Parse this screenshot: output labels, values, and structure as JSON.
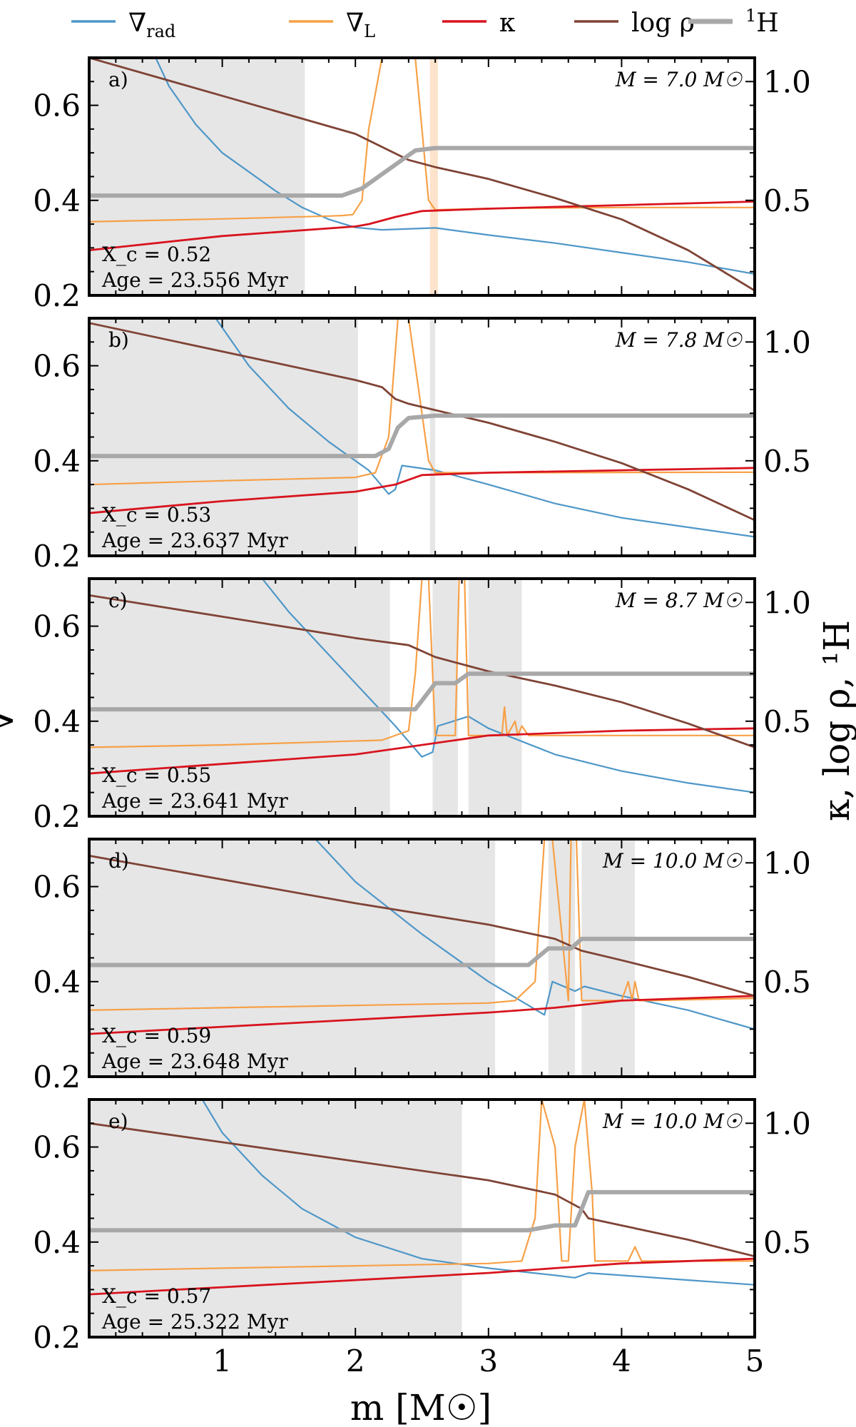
{
  "legend": [
    {
      "key": "grad_rad",
      "base": "∇",
      "sub": "rad",
      "color": "#4e97c8"
    },
    {
      "key": "grad_L",
      "base": "∇",
      "sub": "L",
      "color": "#f7a047"
    },
    {
      "key": "kappa",
      "base": "κ",
      "sub": "",
      "color": "#d8141e"
    },
    {
      "key": "logrho",
      "base": "log ρ",
      "sub": "",
      "color": "#7f4335"
    },
    {
      "key": "h1",
      "base": "H",
      "sup": "1",
      "color": "#a8a8a8"
    }
  ],
  "xlabel": "m [M☉]",
  "ylabel_left": "∇",
  "ylabel_right": "κ, log ρ, ¹H",
  "chart_data": [
    {
      "type": "line",
      "panel": "a)",
      "mass_label": "M = 7.0 M☉",
      "xc_label": "X_c = 0.52",
      "age_label": "Age = 23.556  Myr",
      "xlim": [
        0,
        5
      ],
      "ylim_left": [
        0.2,
        0.7
      ],
      "ylim_right": [
        0.1,
        1.1
      ],
      "xticks": [
        1,
        2,
        3,
        4,
        5
      ],
      "yticks_left": [
        0.2,
        0.4,
        0.6
      ],
      "yticks_right": [
        0.5,
        1.0
      ],
      "shaded": [
        {
          "x0": 0,
          "x1": 1.62,
          "color": "#e6e6e6"
        },
        {
          "x0": 2.56,
          "x1": 2.62,
          "color": "#fde3cc"
        }
      ],
      "series": {
        "grad_rad": {
          "x": [
            0.5,
            0.6,
            0.8,
            1.0,
            1.2,
            1.4,
            1.6,
            1.8,
            2.0,
            2.2,
            2.6,
            3.0,
            3.5,
            4.0,
            4.5,
            5.0
          ],
          "y": [
            0.7,
            0.64,
            0.56,
            0.5,
            0.46,
            0.42,
            0.385,
            0.36,
            0.343,
            0.338,
            0.342,
            0.327,
            0.31,
            0.29,
            0.27,
            0.245
          ]
        },
        "grad_L": {
          "x": [
            0,
            1.0,
            1.8,
            1.9,
            1.98,
            2.05,
            2.1,
            2.2,
            2.45,
            2.5,
            2.55,
            2.6,
            3.0,
            4.0,
            5.0
          ],
          "y": [
            0.355,
            0.361,
            0.367,
            0.368,
            0.37,
            0.4,
            0.55,
            0.7,
            0.7,
            0.55,
            0.4,
            0.38,
            0.383,
            0.385,
            0.385
          ]
        },
        "kappa": {
          "x": [
            0,
            1.0,
            2.0,
            2.1,
            2.3,
            2.5,
            3.0,
            4.0,
            5.0
          ],
          "y": [
            0.29,
            0.35,
            0.39,
            0.4,
            0.43,
            0.455,
            0.465,
            0.48,
            0.495
          ]
        },
        "logrho": {
          "x": [
            0,
            1.0,
            2.0,
            2.4,
            2.6,
            3.0,
            3.5,
            4.0,
            4.5,
            5.0
          ],
          "y": [
            1.1,
            0.94,
            0.78,
            0.67,
            0.64,
            0.59,
            0.51,
            0.42,
            0.29,
            0.12
          ]
        },
        "h1": {
          "x": [
            0,
            1.9,
            2.05,
            2.3,
            2.45,
            2.6,
            5.0
          ],
          "y": [
            0.52,
            0.52,
            0.55,
            0.65,
            0.71,
            0.72,
            0.72
          ]
        }
      }
    },
    {
      "type": "line",
      "panel": "b)",
      "mass_label": "M = 7.8 M☉",
      "xc_label": "X_c = 0.53",
      "age_label": "Age = 23.637  Myr",
      "xlim": [
        0,
        5
      ],
      "ylim_left": [
        0.2,
        0.7
      ],
      "ylim_right": [
        0.1,
        1.1
      ],
      "xticks": [
        1,
        2,
        3,
        4,
        5
      ],
      "yticks_left": [
        0.2,
        0.4,
        0.6
      ],
      "yticks_right": [
        0.5,
        1.0
      ],
      "shaded": [
        {
          "x0": 0,
          "x1": 2.02,
          "color": "#e6e6e6"
        },
        {
          "x0": 2.56,
          "x1": 2.6,
          "color": "#e6e6e6"
        }
      ],
      "series": {
        "grad_rad": {
          "x": [
            0.95,
            1.2,
            1.5,
            1.8,
            2.1,
            2.25,
            2.3,
            2.35,
            2.6,
            3.0,
            3.5,
            4.0,
            4.5,
            5.0
          ],
          "y": [
            0.7,
            0.6,
            0.51,
            0.44,
            0.38,
            0.33,
            0.34,
            0.39,
            0.38,
            0.35,
            0.31,
            0.28,
            0.26,
            0.24
          ]
        },
        "grad_L": {
          "x": [
            0,
            1.0,
            2.0,
            2.15,
            2.25,
            2.32,
            2.4,
            2.5,
            2.55,
            2.6,
            3.0,
            5.0
          ],
          "y": [
            0.35,
            0.358,
            0.365,
            0.375,
            0.45,
            0.7,
            0.7,
            0.5,
            0.4,
            0.375,
            0.375,
            0.376
          ]
        },
        "kappa": {
          "x": [
            0,
            1.0,
            2.0,
            2.3,
            2.5,
            3.0,
            4.0,
            5.0
          ],
          "y": [
            0.28,
            0.33,
            0.37,
            0.4,
            0.44,
            0.45,
            0.46,
            0.47
          ]
        },
        "logrho": {
          "x": [
            0,
            1.0,
            2.0,
            2.2,
            2.3,
            2.4,
            3.0,
            3.5,
            4.0,
            4.5,
            5.0
          ],
          "y": [
            1.08,
            0.96,
            0.84,
            0.81,
            0.76,
            0.74,
            0.66,
            0.58,
            0.49,
            0.38,
            0.25
          ]
        },
        "h1": {
          "x": [
            0,
            2.15,
            2.25,
            2.32,
            2.4,
            2.6,
            5.0
          ],
          "y": [
            0.52,
            0.52,
            0.55,
            0.64,
            0.68,
            0.69,
            0.69
          ]
        }
      }
    },
    {
      "type": "line",
      "panel": "c)",
      "mass_label": "M = 8.7 M☉",
      "xc_label": "X_c = 0.55",
      "age_label": "Age = 23.641  Myr",
      "xlim": [
        0,
        5
      ],
      "ylim_left": [
        0.2,
        0.7
      ],
      "ylim_right": [
        0.1,
        1.1
      ],
      "xticks": [
        1,
        2,
        3,
        4,
        5
      ],
      "yticks_left": [
        0.2,
        0.4,
        0.6
      ],
      "yticks_right": [
        0.5,
        1.0
      ],
      "shaded": [
        {
          "x0": 0,
          "x1": 2.26,
          "color": "#e6e6e6"
        },
        {
          "x0": 2.58,
          "x1": 2.77,
          "color": "#e6e6e6"
        },
        {
          "x0": 2.85,
          "x1": 3.25,
          "color": "#e6e6e6"
        }
      ],
      "series": {
        "grad_rad": {
          "x": [
            1.3,
            1.5,
            1.8,
            2.1,
            2.3,
            2.5,
            2.58,
            2.62,
            2.85,
            3.0,
            3.5,
            4.0,
            4.5,
            5.0
          ],
          "y": [
            0.7,
            0.63,
            0.54,
            0.45,
            0.39,
            0.325,
            0.335,
            0.39,
            0.41,
            0.385,
            0.33,
            0.295,
            0.27,
            0.25
          ]
        },
        "grad_L": {
          "x": [
            0,
            1.0,
            2.2,
            2.4,
            2.45,
            2.5,
            2.55,
            2.6,
            2.75,
            2.78,
            2.82,
            2.85,
            3.0,
            3.1,
            3.12,
            3.14,
            3.2,
            3.22,
            3.25,
            3.3,
            4.0,
            5.0
          ],
          "y": [
            0.345,
            0.35,
            0.36,
            0.38,
            0.5,
            0.7,
            0.7,
            0.37,
            0.37,
            0.7,
            0.7,
            0.37,
            0.37,
            0.37,
            0.43,
            0.37,
            0.4,
            0.37,
            0.39,
            0.37,
            0.37,
            0.37
          ]
        },
        "kappa": {
          "x": [
            0,
            1.0,
            2.0,
            2.5,
            3.0,
            4.0,
            5.0
          ],
          "y": [
            0.28,
            0.32,
            0.36,
            0.4,
            0.44,
            0.46,
            0.47
          ]
        },
        "logrho": {
          "x": [
            0,
            1.0,
            2.0,
            2.4,
            2.6,
            3.0,
            3.5,
            4.0,
            4.5,
            5.0
          ],
          "y": [
            1.03,
            0.94,
            0.85,
            0.82,
            0.77,
            0.71,
            0.65,
            0.58,
            0.49,
            0.39
          ]
        },
        "h1": {
          "x": [
            0,
            2.45,
            2.6,
            2.75,
            2.85,
            5.0
          ],
          "y": [
            0.55,
            0.55,
            0.66,
            0.66,
            0.7,
            0.7
          ]
        }
      }
    },
    {
      "type": "line",
      "panel": "d)",
      "mass_label": "M = 10.0 M☉",
      "xc_label": "X_c = 0.59",
      "age_label": "Age = 23.648  Myr",
      "xlim": [
        0,
        5
      ],
      "ylim_left": [
        0.2,
        0.7
      ],
      "ylim_right": [
        0.1,
        1.1
      ],
      "xticks": [
        1,
        2,
        3,
        4,
        5
      ],
      "yticks_left": [
        0.2,
        0.4,
        0.6
      ],
      "yticks_right": [
        0.5,
        1.0
      ],
      "shaded": [
        {
          "x0": 0,
          "x1": 3.05,
          "color": "#e6e6e6"
        },
        {
          "x0": 3.45,
          "x1": 3.65,
          "color": "#e6e6e6"
        },
        {
          "x0": 3.7,
          "x1": 4.1,
          "color": "#e6e6e6"
        }
      ],
      "series": {
        "grad_rad": {
          "x": [
            1.7,
            2.0,
            2.5,
            3.0,
            3.3,
            3.42,
            3.48,
            3.65,
            3.72,
            4.0,
            4.5,
            5.0
          ],
          "y": [
            0.7,
            0.61,
            0.5,
            0.4,
            0.35,
            0.33,
            0.4,
            0.38,
            0.39,
            0.37,
            0.34,
            0.3
          ]
        },
        "grad_L": {
          "x": [
            0,
            1.0,
            2.0,
            3.0,
            3.2,
            3.35,
            3.42,
            3.48,
            3.6,
            3.62,
            3.66,
            3.7,
            4.0,
            4.05,
            4.08,
            4.1,
            4.13,
            4.2,
            5.0
          ],
          "y": [
            0.34,
            0.345,
            0.35,
            0.355,
            0.36,
            0.4,
            0.7,
            0.7,
            0.36,
            0.7,
            0.7,
            0.36,
            0.36,
            0.4,
            0.36,
            0.4,
            0.36,
            0.36,
            0.365
          ]
        },
        "kappa": {
          "x": [
            0,
            1.0,
            2.0,
            3.0,
            3.5,
            4.0,
            5.0
          ],
          "y": [
            0.28,
            0.31,
            0.34,
            0.37,
            0.39,
            0.42,
            0.44
          ]
        },
        "logrho": {
          "x": [
            0,
            1.0,
            2.0,
            3.0,
            3.5,
            3.7,
            4.0,
            4.5,
            5.0
          ],
          "y": [
            1.03,
            0.93,
            0.83,
            0.74,
            0.68,
            0.63,
            0.59,
            0.52,
            0.44
          ]
        },
        "h1": {
          "x": [
            0,
            3.3,
            3.45,
            3.62,
            3.7,
            5.0
          ],
          "y": [
            0.57,
            0.57,
            0.64,
            0.64,
            0.68,
            0.68
          ]
        }
      }
    },
    {
      "type": "line",
      "panel": "e)",
      "mass_label": "M = 10.0 M☉",
      "xc_label": "X_c = 0.57",
      "age_label": "Age = 25.322  Myr",
      "xlim": [
        0,
        5
      ],
      "ylim_left": [
        0.2,
        0.7
      ],
      "ylim_right": [
        0.1,
        1.1
      ],
      "xticks": [
        1,
        2,
        3,
        4,
        5
      ],
      "yticks_left": [
        0.2,
        0.4,
        0.6
      ],
      "yticks_right": [
        0.5,
        1.0
      ],
      "shaded": [
        {
          "x0": 0,
          "x1": 2.8,
          "color": "#e6e6e6"
        }
      ],
      "series": {
        "grad_rad": {
          "x": [
            0.85,
            1.0,
            1.3,
            1.6,
            2.0,
            2.5,
            3.0,
            3.5,
            3.65,
            3.75,
            4.0,
            4.5,
            5.0
          ],
          "y": [
            0.7,
            0.63,
            0.54,
            0.47,
            0.41,
            0.365,
            0.345,
            0.33,
            0.325,
            0.335,
            0.33,
            0.32,
            0.31
          ]
        },
        "grad_L": {
          "x": [
            0,
            1.0,
            2.0,
            3.0,
            3.25,
            3.35,
            3.4,
            3.5,
            3.55,
            3.6,
            3.65,
            3.72,
            3.78,
            3.8,
            4.05,
            4.1,
            4.15,
            4.2,
            5.0
          ],
          "y": [
            0.34,
            0.345,
            0.35,
            0.355,
            0.36,
            0.45,
            0.7,
            0.6,
            0.36,
            0.36,
            0.6,
            0.7,
            0.5,
            0.36,
            0.36,
            0.39,
            0.36,
            0.36,
            0.36
          ]
        },
        "kappa": {
          "x": [
            0,
            1.0,
            2.0,
            3.0,
            3.5,
            4.0,
            5.0
          ],
          "y": [
            0.28,
            0.31,
            0.34,
            0.37,
            0.39,
            0.41,
            0.43
          ]
        },
        "logrho": {
          "x": [
            0,
            1.0,
            2.0,
            3.0,
            3.5,
            3.7,
            3.75,
            4.0,
            4.5,
            5.0
          ],
          "y": [
            1.0,
            0.92,
            0.84,
            0.76,
            0.7,
            0.64,
            0.6,
            0.57,
            0.51,
            0.44
          ]
        },
        "h1": {
          "x": [
            0,
            3.3,
            3.5,
            3.65,
            3.75,
            5.0
          ],
          "y": [
            0.55,
            0.55,
            0.57,
            0.57,
            0.71,
            0.71
          ]
        }
      }
    }
  ]
}
